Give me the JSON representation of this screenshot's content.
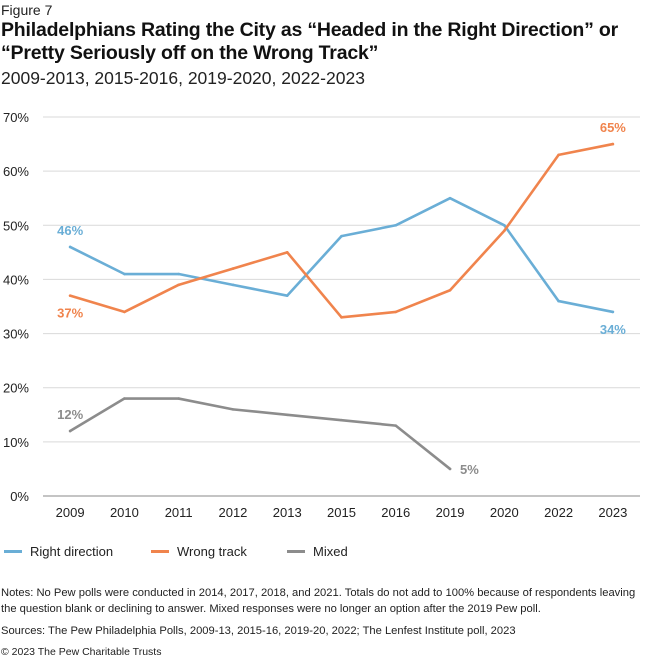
{
  "figure_label": "Figure 7",
  "title": "Philadelphians Rating the City as “Headed in the Right Direction” or “Pretty Seriously off on the Wrong Track”",
  "subtitle": "2009-2013, 2015-2016, 2019-2020, 2022-2023",
  "notes": "Notes: No Pew polls were conducted in 2014, 2017, 2018, and 2021. Totals do not add to 100% because of respondents leaving the question blank or declining to answer. Mixed responses were no longer an option after the 2019 Pew poll.",
  "sources": "Sources: The Pew Philadelphia Polls, 2009-13, 2015-16, 2019-20, 2022; The Lenfest Institute poll, 2023",
  "copyright": "© 2023 The Pew Charitable Trusts",
  "chart_data": {
    "type": "line",
    "categories": [
      "2009",
      "2010",
      "2011",
      "2012",
      "2013",
      "2015",
      "2016",
      "2019",
      "2020",
      "2022",
      "2023"
    ],
    "ylim": [
      0,
      70
    ],
    "yticks": [
      0,
      10,
      20,
      30,
      40,
      50,
      60,
      70
    ],
    "ytick_labels": [
      "0%",
      "10%",
      "20%",
      "30%",
      "40%",
      "50%",
      "60%",
      "70%"
    ],
    "grid": "horizontal",
    "legend_position": "bottom",
    "series": [
      {
        "name": "Right direction",
        "color": "#6aaed6",
        "values": [
          46,
          41,
          41,
          39,
          37,
          48,
          50,
          55,
          50,
          36,
          34
        ],
        "labels": [
          {
            "index": 0,
            "text": "46%",
            "position": "above"
          },
          {
            "index": 10,
            "text": "34%",
            "position": "below"
          }
        ]
      },
      {
        "name": "Wrong track",
        "color": "#f0844d",
        "values": [
          37,
          34,
          39,
          42,
          45,
          33,
          34,
          38,
          49,
          63,
          65
        ],
        "labels": [
          {
            "index": 0,
            "text": "37%",
            "position": "below"
          },
          {
            "index": 10,
            "text": "65%",
            "position": "above"
          }
        ]
      },
      {
        "name": "Mixed",
        "color": "#8c8c8c",
        "values": [
          12,
          18,
          18,
          16,
          15,
          14,
          13,
          5,
          null,
          null,
          null
        ],
        "labels": [
          {
            "index": 0,
            "text": "12%",
            "position": "above"
          },
          {
            "index": 7,
            "text": "5%",
            "position": "right"
          }
        ]
      }
    ]
  }
}
